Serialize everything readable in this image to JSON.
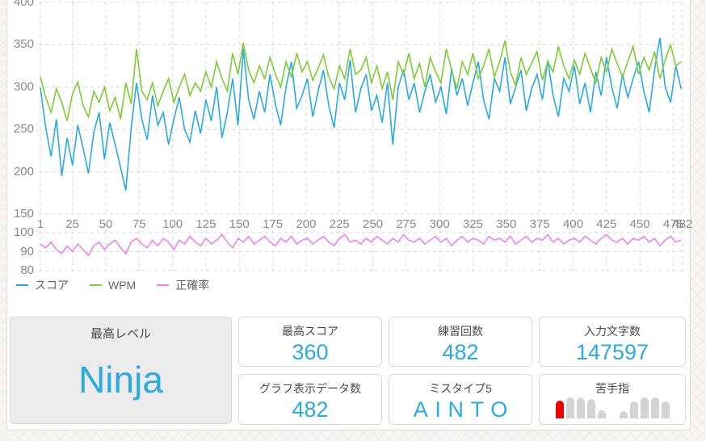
{
  "chart_data": {
    "type": "line",
    "x_start": 1,
    "x_step": 4,
    "x_max": 482,
    "x_ticks": [
      1,
      25,
      50,
      75,
      100,
      125,
      150,
      175,
      200,
      225,
      250,
      275,
      300,
      325,
      350,
      375,
      400,
      425,
      450,
      475,
      482
    ],
    "grid": true,
    "legend_position": "bottom-left",
    "panels": [
      {
        "ylim": [
          150,
          400
        ],
        "y_ticks": [
          400,
          350,
          300,
          250,
          200,
          150
        ]
      },
      {
        "ylim": [
          80,
          100
        ],
        "y_ticks": [
          100,
          90,
          80
        ]
      }
    ],
    "series": [
      {
        "name": "スコア",
        "color": "#29abe2",
        "panel": 0,
        "values": [
          299,
          252,
          218,
          262,
          195,
          240,
          208,
          255,
          228,
          198,
          246,
          270,
          215,
          258,
          232,
          205,
          178,
          252,
          305,
          262,
          238,
          290,
          255,
          270,
          232,
          262,
          288,
          250,
          235,
          272,
          245,
          285,
          260,
          300,
          240,
          270,
          310,
          255,
          345,
          285,
          262,
          295,
          270,
          315,
          280,
          255,
          300,
          330,
          275,
          290,
          310,
          265,
          295,
          320,
          278,
          252,
          305,
          285,
          332,
          270,
          298,
          315,
          272,
          290,
          258,
          305,
          232,
          300,
          320,
          285,
          305,
          270,
          295,
          315,
          282,
          300,
          268,
          322,
          290,
          310,
          278,
          305,
          330,
          285,
          262,
          310,
          295,
          335,
          280,
          300,
          320,
          272,
          298,
          315,
          285,
          332,
          290,
          265,
          310,
          295,
          325,
          280,
          305,
          270,
          318,
          290,
          335,
          300,
          275,
          315,
          288,
          310,
          330,
          295,
          270,
          320,
          358,
          300,
          282,
          325,
          298
        ]
      },
      {
        "name": "WPM",
        "color": "#7ecb34",
        "panel": 0,
        "values": [
          312,
          288,
          270,
          298,
          282,
          260,
          292,
          306,
          278,
          265,
          295,
          282,
          300,
          272,
          288,
          262,
          305,
          280,
          345,
          295,
          285,
          305,
          278,
          295,
          310,
          282,
          300,
          315,
          290,
          305,
          295,
          318,
          300,
          330,
          310,
          295,
          340,
          315,
          352,
          320,
          305,
          325,
          310,
          335,
          315,
          300,
          330,
          312,
          340,
          318,
          330,
          308,
          322,
          338,
          312,
          298,
          325,
          310,
          345,
          315,
          320,
          335,
          305,
          325,
          298,
          318,
          285,
          330,
          315,
          340,
          310,
          328,
          300,
          335,
          318,
          305,
          345,
          320,
          298,
          330,
          315,
          340,
          310,
          325,
          345,
          312,
          330,
          355,
          318,
          302,
          335,
          315,
          328,
          342,
          308,
          330,
          318,
          348,
          325,
          310,
          332,
          315,
          340,
          322,
          305,
          335,
          318,
          345,
          328,
          312,
          330,
          348,
          315,
          335,
          320,
          342,
          310,
          332,
          350,
          325,
          330
        ]
      },
      {
        "name": "正確率",
        "color": "#ef82ef",
        "panel": 1,
        "values": [
          94,
          92,
          95,
          91,
          89,
          93,
          90,
          94,
          91,
          88,
          93,
          95,
          91,
          94,
          96,
          92,
          89,
          95,
          97,
          94,
          92,
          96,
          93,
          97,
          95,
          91,
          96,
          94,
          98,
          95,
          93,
          97,
          94,
          96,
          99,
          95,
          92,
          97,
          95,
          98,
          94,
          96,
          98,
          95,
          93,
          97,
          95,
          98,
          94,
          96,
          97,
          94,
          96,
          98,
          95,
          93,
          97,
          99,
          95,
          96,
          94,
          97,
          95,
          98,
          96,
          94,
          97,
          95,
          99,
          96,
          95,
          97,
          94,
          96,
          98,
          95,
          97,
          93,
          96,
          98,
          95,
          97,
          96,
          94,
          98,
          96,
          97,
          95,
          98,
          94,
          96,
          98,
          95,
          97,
          96,
          99,
          95,
          97,
          94,
          96,
          97,
          95,
          98,
          96,
          94,
          97,
          99,
          96,
          95,
          97,
          94,
          97,
          96,
          98,
          95,
          97,
          93,
          96,
          98,
          95,
          96
        ]
      }
    ]
  },
  "stats": {
    "accent_color": "#29abe2",
    "highlight": {
      "title": "最高レベル",
      "value": "Ninja"
    },
    "cards": [
      {
        "title": "最高スコア",
        "value": "360"
      },
      {
        "title": "練習回数",
        "value": "482"
      },
      {
        "title": "入力文字数",
        "value": "147597"
      },
      {
        "title": "グラフ表示データ数",
        "value": "482"
      },
      {
        "title": "ミスタイプ5",
        "value": "AINTO"
      },
      {
        "title": "苦手指",
        "type": "finger-chart",
        "fingers": {
          "left_heights": [
            22,
            26,
            26,
            24,
            10
          ],
          "right_heights": [
            9,
            21,
            26,
            26,
            21
          ],
          "highlight_hand": "left",
          "highlight_index": 0,
          "highlight_color": "#ed0000",
          "bar_color": "#d4d4d4"
        }
      }
    ]
  }
}
